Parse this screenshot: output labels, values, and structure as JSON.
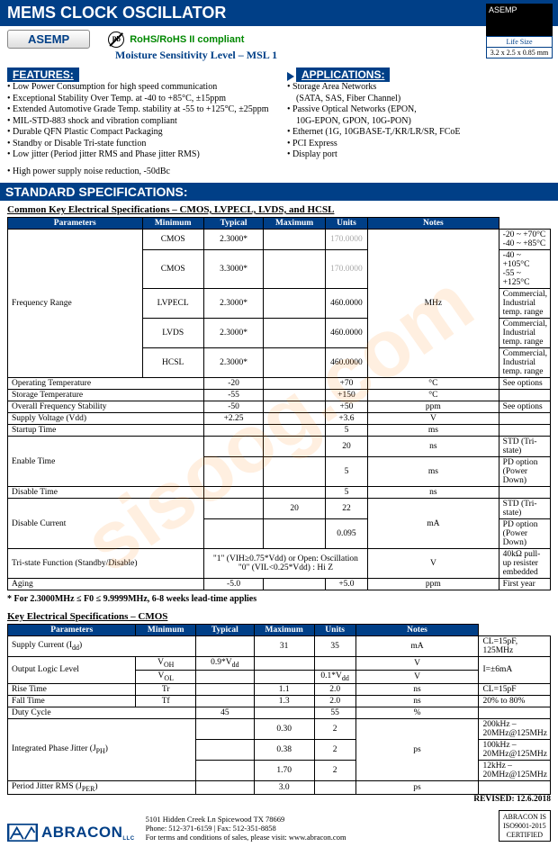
{
  "header": {
    "title": "MEMS CLOCK OSCILLATOR",
    "brand": "ASEMP"
  },
  "chip": {
    "label": "ASEMP",
    "lifesize": "Life Size",
    "dims": "3.2 x 2.5 x 0.85 mm"
  },
  "row2": {
    "tab": "ASEMP",
    "msl": "Moisture Sensitivity Level – MSL 1",
    "pb": "Pb",
    "rohs": "RoHS/RoHS II compliant"
  },
  "features": {
    "heading": "FEATURES:",
    "items": [
      "Low Power Consumption for high speed communication",
      "Exceptional Stability Over Temp. at -40 to +85°C, ±15ppm",
      "Extended Automotive Grade Temp. stability at -55 to +125°C, ±25ppm",
      "MIL-STD-883 shock and vibration compliant",
      "Durable QFN Plastic Compact Packaging",
      "Standby or Disable Tri-state function",
      "Low jitter (Period jitter RMS and Phase jitter RMS)"
    ],
    "extra": "High power supply noise reduction, -50dBc"
  },
  "applications": {
    "heading": "APPLICATIONS:",
    "items": [
      {
        "t": "Storage Area Networks",
        "s": "(SATA, SAS, Fiber Channel)"
      },
      {
        "t": "Passive Optical Networks (EPON,",
        "s": "10G-EPON, GPON, 10G-PON)"
      },
      {
        "t": "Ethernet (1G, 10GBASE-T,/KR/LR/SR, FCoE"
      },
      {
        "t": "PCI Express"
      },
      {
        "t": "Display port"
      }
    ]
  },
  "std_heading": "STANDARD SPECIFICATIONS:",
  "t1": {
    "caption": "Common Key Electrical Specifications – CMOS, LVPECL, LVDS, and HCSL",
    "cols": [
      "Parameters",
      "Minimum",
      "Typical",
      "Maximum",
      "Units",
      "Notes"
    ],
    "freq_label": "Frequency Range",
    "freq_rows": [
      {
        "type": "CMOS",
        "min": "2.3000*",
        "max": "170.0000",
        "dim": true,
        "note": "-20 ~ +70°C\n-40 ~ +85°C"
      },
      {
        "type": "CMOS",
        "min": "3.3000*",
        "max": "170.0000",
        "dim": true,
        "note": "-40 ~ +105°C\n-55 ~ +125°C"
      },
      {
        "type": "LVPECL",
        "min": "2.3000*",
        "max": "460.0000",
        "note": "Commercial, Industrial temp. range"
      },
      {
        "type": "LVDS",
        "min": "2.3000*",
        "max": "460.0000",
        "note": "Commercial, Industrial temp. range"
      },
      {
        "type": "HCSL",
        "min": "2.3000*",
        "max": "460.0000",
        "note": "Commercial, Industrial temp. range"
      }
    ],
    "freq_unit": "MHz",
    "rows": [
      {
        "p": "Operating Temperature",
        "min": "-20",
        "typ": "",
        "max": "+70",
        "u": "°C",
        "n": "See options"
      },
      {
        "p": "Storage Temperature",
        "min": "-55",
        "typ": "",
        "max": "+150",
        "u": "°C",
        "n": ""
      },
      {
        "p": "Overall Frequency Stability",
        "min": "-50",
        "typ": "",
        "max": "+50",
        "u": "ppm",
        "n": "See options"
      },
      {
        "p": "Supply Voltage (Vdd)",
        "min": "+2.25",
        "typ": "",
        "max": "+3.6",
        "u": "V",
        "n": ""
      },
      {
        "p": "Startup Time",
        "min": "",
        "typ": "",
        "max": "5",
        "u": "ms",
        "n": ""
      }
    ],
    "enable": {
      "p": "Enable Time",
      "r": [
        {
          "max": "20",
          "u": "ns",
          "n": "STD (Tri-state)"
        },
        {
          "max": "5",
          "u": "ms",
          "n": "PD option (Power Down)"
        }
      ]
    },
    "disable_time": {
      "p": "Disable Time",
      "max": "5",
      "u": "ns",
      "n": ""
    },
    "disable_current": {
      "p": "Disable Current",
      "r": [
        {
          "typ": "20",
          "max": "22",
          "n": "STD (Tri-state)"
        },
        {
          "typ": "",
          "max": "0.095",
          "n": "PD option (Power Down)"
        }
      ],
      "u": "mA"
    },
    "tristate": {
      "p": "Tri-state Function (Standby/Disable)",
      "val": "\"1\" (VIH≥0.75*Vdd) or Open: Oscillation\n\"0\" (VIL<0.25*Vdd) : Hi Z",
      "u": "V",
      "n": "40kΩ pull-up resister embedded"
    },
    "aging": {
      "p": "Aging",
      "min": "-5.0",
      "max": "+5.0",
      "u": "ppm",
      "n": "First year"
    }
  },
  "leadtime_note": "* For 2.3000MHz ≤ F0 ≤ 9.9999MHz, 6-8 weeks lead-time applies",
  "t2": {
    "caption": "Key Electrical Specifications – CMOS",
    "cols": [
      "Parameters",
      "Minimum",
      "Typical",
      "Maximum",
      "Units",
      "Notes"
    ],
    "supply": {
      "p": "Supply Current  (I",
      "sub": "dd",
      "close": ")",
      "typ": "31",
      "max": "35",
      "u": "mA",
      "n": "CL=15pF, 125MHz"
    },
    "logic": {
      "p": "Output Logic Level",
      "r": [
        {
          "sym": "V",
          "sub": "OH",
          "min": "0.9*V",
          "minsub": "dd",
          "u": "V"
        },
        {
          "sym": "V",
          "sub": "OL",
          "max": "0.1*V",
          "maxsub": "dd",
          "u": "V"
        }
      ],
      "n": "I=±6mA"
    },
    "rise": {
      "p": "Rise Time",
      "sym": "Tr",
      "typ": "1.1",
      "max": "2.0",
      "u": "ns",
      "n": "CL=15pF"
    },
    "fall": {
      "p": "Fall Time",
      "sym": "Tf",
      "typ": "1.3",
      "max": "2.0",
      "u": "ns",
      "n": "20% to 80%"
    },
    "duty": {
      "p": "Duty Cycle",
      "min": "45",
      "max": "55",
      "u": "%",
      "n": ""
    },
    "phase": {
      "p": "Integrated Phase Jitter  (J",
      "sub": "PH",
      "close": ")",
      "r": [
        {
          "typ": "0.30",
          "max": "2",
          "n": "200kHz – 20MHz@125MHz"
        },
        {
          "typ": "0.38",
          "max": "2",
          "n": "100kHz – 20MHz@125MHz"
        },
        {
          "typ": "1.70",
          "max": "2",
          "n": "12kHz – 20MHz@125MHz"
        }
      ],
      "u": "ps"
    },
    "period": {
      "p": "Period Jitter RMS (J",
      "sub": "PER",
      "close": ")",
      "typ": "3.0",
      "u": "ps",
      "n": ""
    }
  },
  "footer": {
    "revised": "REVISED: 12.6.2018",
    "logo": "ABRACON",
    "llc": "LLC",
    "addr": "5101 Hidden Creek Ln Spicewood TX 78669",
    "phone": "Phone: 512-371-6159 | Fax: 512-351-8858",
    "terms": "For terms and conditions of sales, please visit: www.abracon.com",
    "cert1": "ABRACON IS",
    "cert2": "ISO9001-2015",
    "cert3": "CERTIFIED"
  }
}
